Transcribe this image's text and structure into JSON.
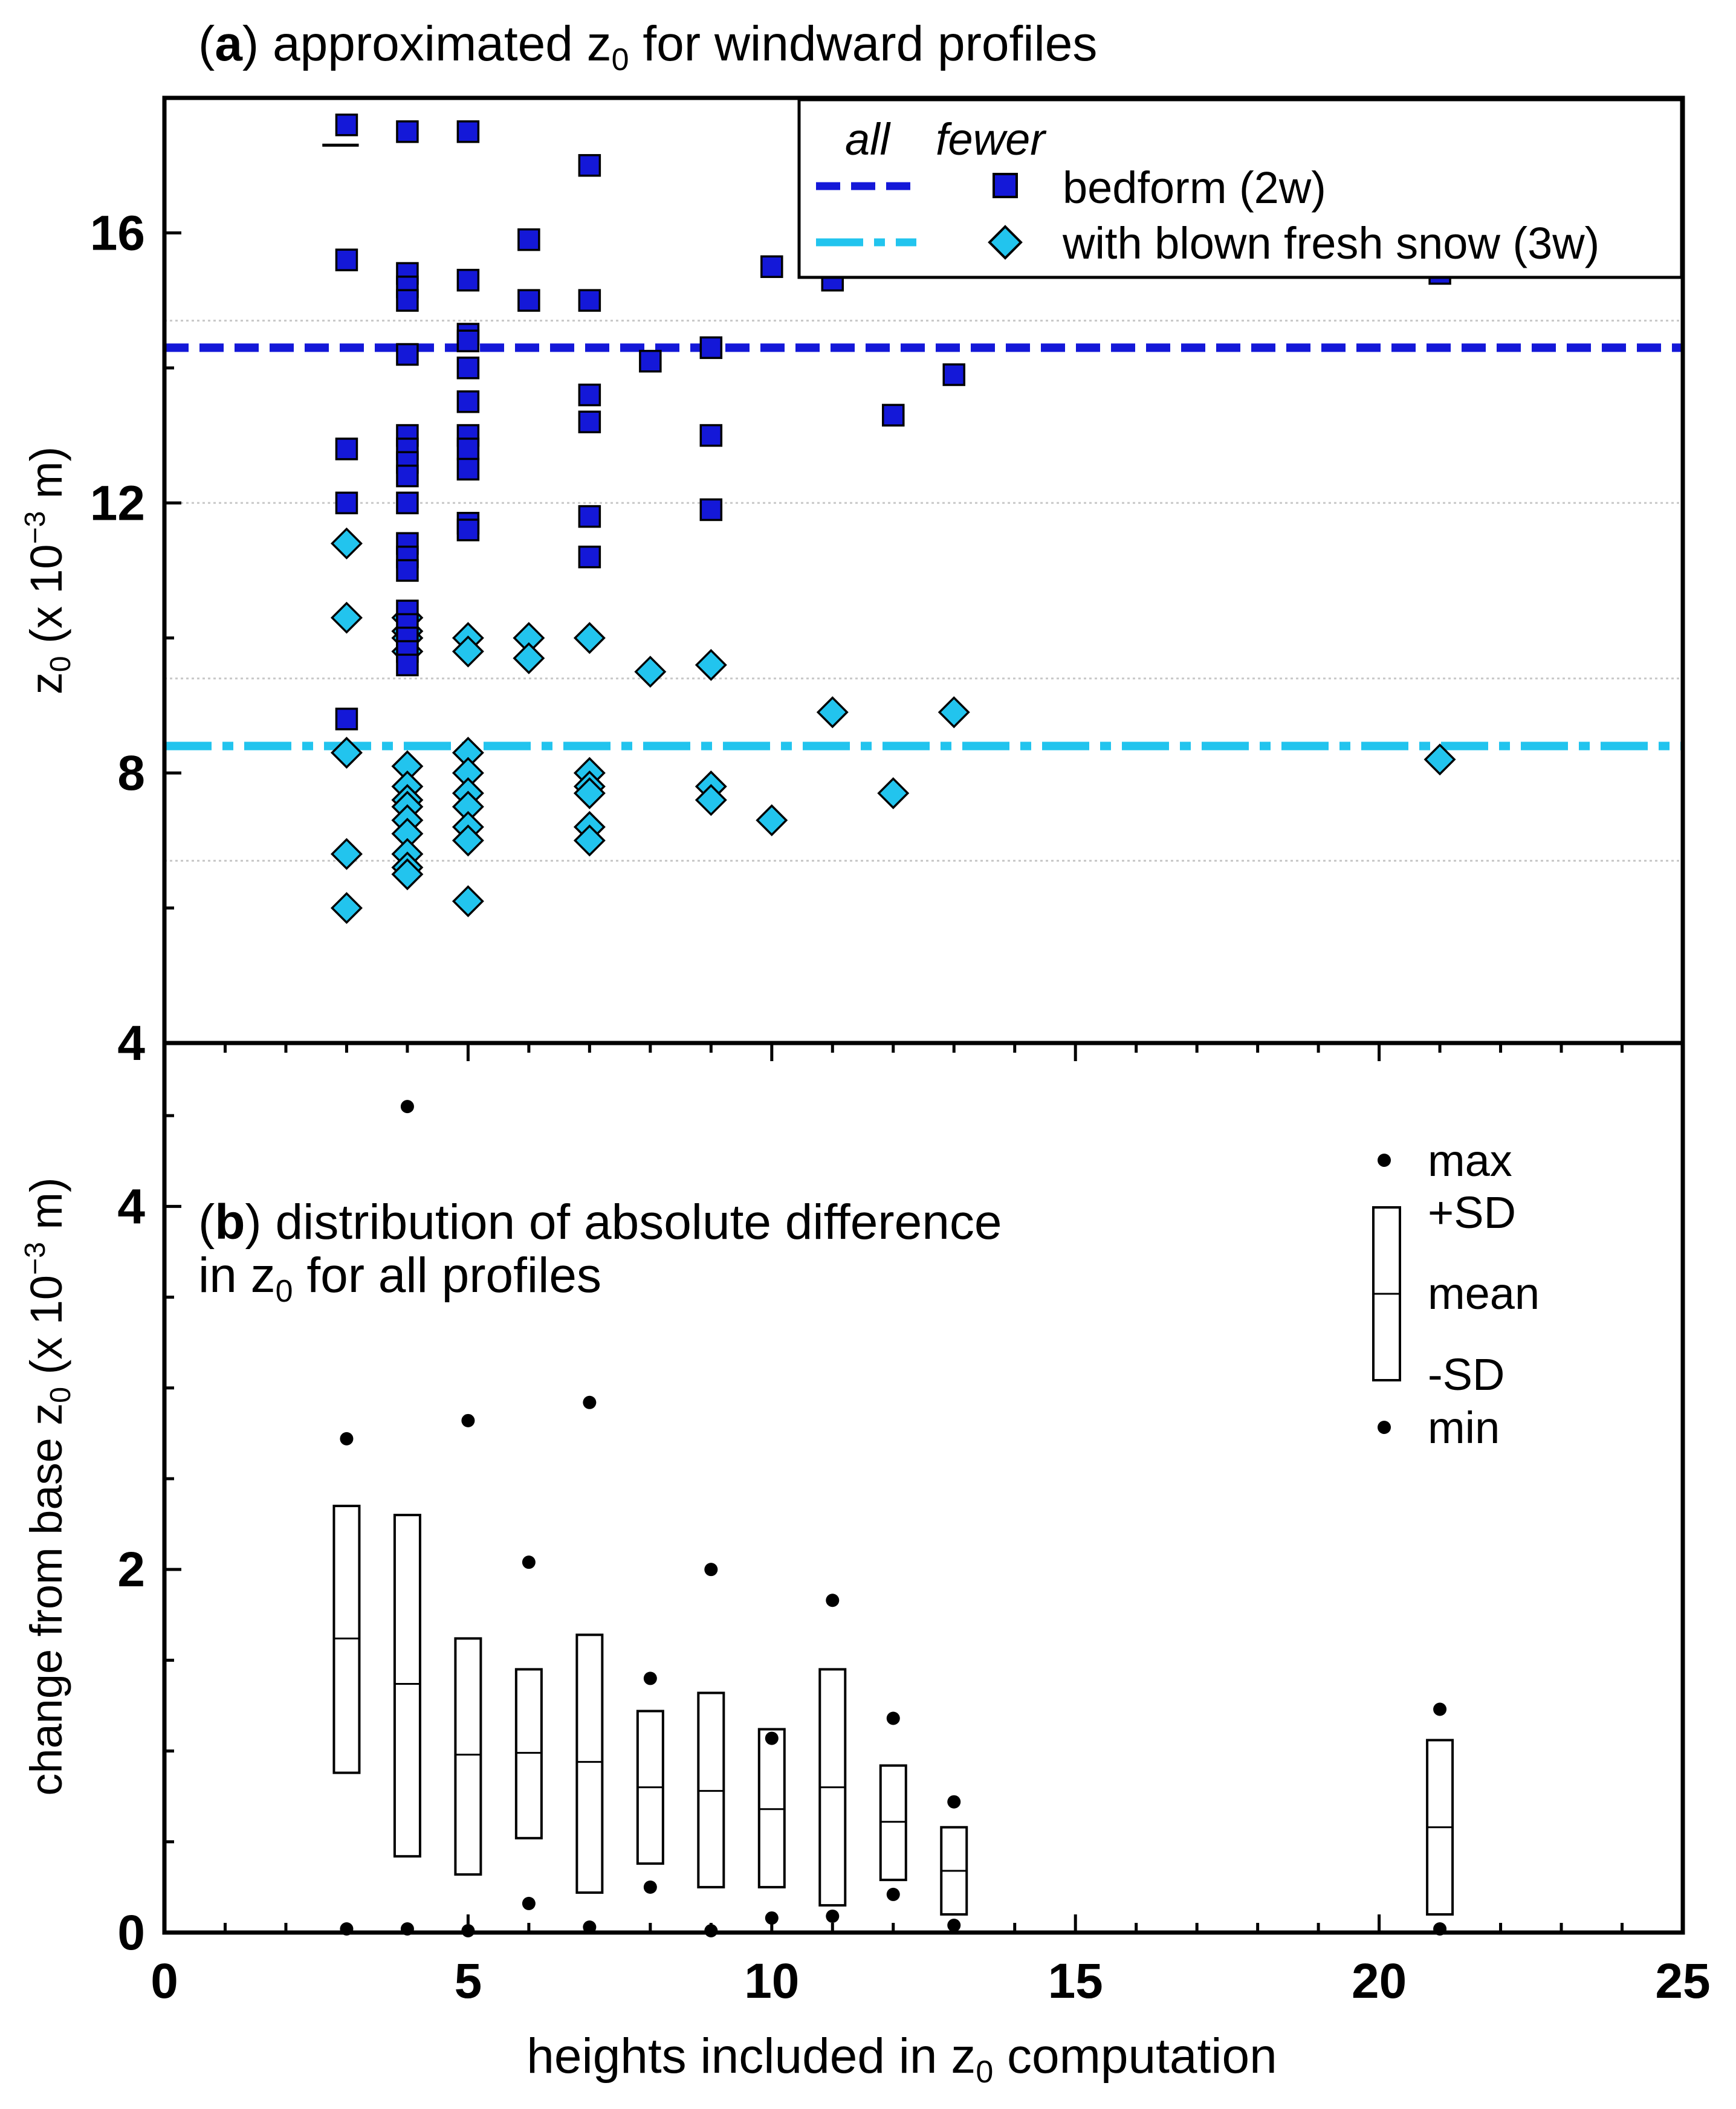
{
  "chart_data": [
    {
      "panel": "a",
      "type": "scatter",
      "title": {
        "label": "a",
        "prefix": "(",
        "suffix": ") approximated z",
        "sub": "0",
        "tail": " for windward profiles"
      },
      "ylabel": {
        "main": "z",
        "sub": "0",
        "rest": " (x 10",
        "sup": "−3",
        "end": " m)"
      },
      "ylim": [
        4,
        18
      ],
      "y_ticks": [
        4,
        8,
        12,
        16
      ],
      "y_tick_labels": [
        "4",
        "8",
        "12",
        "16"
      ],
      "y_minor_step": 2,
      "gridlines_y": [
        6.7,
        9.4,
        12.0,
        14.7
      ],
      "legend": {
        "header_all": "all",
        "header_fewer": "fewer",
        "entries": [
          {
            "label": "bedform (2w)",
            "line_style": "dashed",
            "marker": "square",
            "color": "#1418d8"
          },
          {
            "label": "with blown fresh snow (3w)",
            "line_style": "dash-dot",
            "marker": "diamond",
            "color": "#22c4ee"
          }
        ]
      },
      "reference_lines": [
        {
          "series": "bedform (2w)",
          "y": 14.3,
          "color": "#1418d8"
        },
        {
          "series": "with blown fresh snow (3w)",
          "y": 8.4,
          "color": "#22c4ee"
        }
      ],
      "short_line": {
        "x_from": 2.6,
        "x_to": 3.2,
        "y": 17.3
      },
      "series": [
        {
          "name": "bedform (2w)",
          "marker": "square",
          "color": "#1418d8",
          "points": [
            [
              3,
              17.6
            ],
            [
              3,
              15.6
            ],
            [
              3,
              12.8
            ],
            [
              3,
              12.0
            ],
            [
              3,
              8.8
            ],
            [
              4,
              17.5
            ],
            [
              4,
              15.4
            ],
            [
              4,
              15.2
            ],
            [
              4,
              15.0
            ],
            [
              4,
              14.2
            ],
            [
              4,
              13.0
            ],
            [
              4,
              12.8
            ],
            [
              4,
              12.6
            ],
            [
              4,
              12.4
            ],
            [
              4,
              12.0
            ],
            [
              4,
              11.4
            ],
            [
              4,
              11.2
            ],
            [
              4,
              11.0
            ],
            [
              4,
              10.4
            ],
            [
              4,
              10.2
            ],
            [
              4,
              10.0
            ],
            [
              4,
              9.8
            ],
            [
              4,
              9.6
            ],
            [
              5,
              17.5
            ],
            [
              5,
              15.3
            ],
            [
              5,
              14.5
            ],
            [
              5,
              14.4
            ],
            [
              5,
              14.0
            ],
            [
              5,
              13.5
            ],
            [
              5,
              13.0
            ],
            [
              5,
              12.8
            ],
            [
              5,
              12.5
            ],
            [
              5,
              11.7
            ],
            [
              5,
              11.6
            ],
            [
              6,
              15.9
            ],
            [
              6,
              15.0
            ],
            [
              7,
              17.0
            ],
            [
              7,
              15.0
            ],
            [
              7,
              13.6
            ],
            [
              7,
              13.2
            ],
            [
              7,
              11.8
            ],
            [
              7,
              11.2
            ],
            [
              8,
              14.1
            ],
            [
              9,
              14.3
            ],
            [
              9,
              13.0
            ],
            [
              9,
              11.9
            ],
            [
              10,
              15.5
            ],
            [
              11,
              15.3
            ],
            [
              12,
              13.3
            ],
            [
              13,
              13.9
            ],
            [
              21,
              15.4
            ]
          ]
        },
        {
          "name": "with blown fresh snow (3w)",
          "marker": "diamond",
          "color": "#22c4ee",
          "points": [
            [
              3,
              11.4
            ],
            [
              3,
              10.3
            ],
            [
              3,
              8.3
            ],
            [
              3,
              6.8
            ],
            [
              3,
              6.0
            ],
            [
              4,
              10.3
            ],
            [
              4,
              10.1
            ],
            [
              4,
              10.0
            ],
            [
              4,
              9.8
            ],
            [
              4,
              8.1
            ],
            [
              4,
              7.8
            ],
            [
              4,
              7.6
            ],
            [
              4,
              7.5
            ],
            [
              4,
              7.3
            ],
            [
              4,
              7.1
            ],
            [
              4,
              6.8
            ],
            [
              4,
              6.6
            ],
            [
              4,
              6.5
            ],
            [
              5,
              10.0
            ],
            [
              5,
              9.8
            ],
            [
              5,
              8.3
            ],
            [
              5,
              8.0
            ],
            [
              5,
              7.7
            ],
            [
              5,
              7.5
            ],
            [
              5,
              7.2
            ],
            [
              5,
              7.0
            ],
            [
              5,
              6.1
            ],
            [
              6,
              10.0
            ],
            [
              6,
              9.7
            ],
            [
              7,
              10.0
            ],
            [
              7,
              8.0
            ],
            [
              7,
              7.8
            ],
            [
              7,
              7.7
            ],
            [
              7,
              7.2
            ],
            [
              7,
              7.0
            ],
            [
              8,
              9.5
            ],
            [
              9,
              9.6
            ],
            [
              9,
              7.8
            ],
            [
              9,
              7.6
            ],
            [
              10,
              7.3
            ],
            [
              11,
              8.9
            ],
            [
              12,
              7.7
            ],
            [
              13,
              8.9
            ],
            [
              21,
              8.2
            ]
          ]
        }
      ]
    },
    {
      "panel": "b",
      "type": "box",
      "title_line1": {
        "prefix": "(",
        "label": "b",
        "rest": ") distribution of absolute difference"
      },
      "title_line2": {
        "main": "in z",
        "sub": "0",
        "rest": " for all profiles"
      },
      "xlabel": {
        "main": "heights included in z",
        "sub": "0",
        "rest": " computation"
      },
      "ylabel": {
        "main": "change from base z",
        "sub": "0",
        "rest": " (x 10",
        "sup": "−3",
        "end": " m)"
      },
      "xlim": [
        0,
        25
      ],
      "ylim": [
        0,
        4.9
      ],
      "x_ticks": [
        0,
        5,
        10,
        15,
        20,
        25
      ],
      "x_tick_labels": [
        "0",
        "5",
        "10",
        "15",
        "20",
        "25"
      ],
      "y_ticks": [
        0,
        2,
        4
      ],
      "y_tick_labels": [
        "0",
        "2",
        "4"
      ],
      "legend": {
        "max": "max",
        "plus_sd": "+SD",
        "mean": "mean",
        "minus_sd": "-SD",
        "min": "min"
      },
      "boxes": [
        {
          "x": 3,
          "max": 2.72,
          "plus_sd": 2.35,
          "mean": 1.62,
          "minus_sd": 0.88,
          "min": 0.02
        },
        {
          "x": 4,
          "max": 4.55,
          "plus_sd": 2.3,
          "mean": 1.37,
          "minus_sd": 0.42,
          "min": 0.02
        },
        {
          "x": 5,
          "max": 2.82,
          "plus_sd": 1.62,
          "mean": 0.98,
          "minus_sd": 0.32,
          "min": 0.01
        },
        {
          "x": 6,
          "max": 2.04,
          "plus_sd": 1.45,
          "mean": 0.99,
          "minus_sd": 0.52,
          "min": 0.16
        },
        {
          "x": 7,
          "max": 2.92,
          "plus_sd": 1.64,
          "mean": 0.94,
          "minus_sd": 0.22,
          "min": 0.03
        },
        {
          "x": 8,
          "max": 1.4,
          "plus_sd": 1.22,
          "mean": 0.8,
          "minus_sd": 0.38,
          "min": 0.25
        },
        {
          "x": 9,
          "max": 2.0,
          "plus_sd": 1.32,
          "mean": 0.78,
          "minus_sd": 0.25,
          "min": 0.01
        },
        {
          "x": 10,
          "max": 1.07,
          "plus_sd": 1.12,
          "mean": 0.68,
          "minus_sd": 0.25,
          "min": 0.08
        },
        {
          "x": 11,
          "max": 1.83,
          "plus_sd": 1.45,
          "mean": 0.8,
          "minus_sd": 0.15,
          "min": 0.09
        },
        {
          "x": 12,
          "max": 1.18,
          "plus_sd": 0.92,
          "mean": 0.61,
          "minus_sd": 0.29,
          "min": 0.21
        },
        {
          "x": 13,
          "max": 0.72,
          "plus_sd": 0.58,
          "mean": 0.34,
          "minus_sd": 0.1,
          "min": 0.04
        },
        {
          "x": 21,
          "max": 1.23,
          "plus_sd": 1.06,
          "mean": 0.58,
          "minus_sd": 0.1,
          "min": 0.02
        }
      ]
    }
  ]
}
